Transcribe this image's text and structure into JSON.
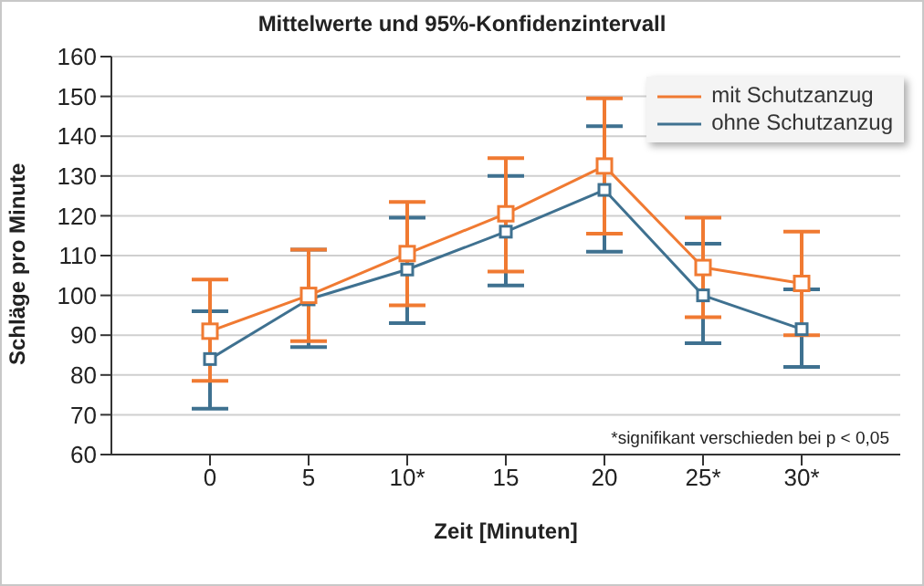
{
  "chart_data": {
    "type": "line",
    "title": "Mittelwerte und 95%-Konfidenzintervall",
    "xlabel": "Zeit [Minuten]",
    "ylabel": "Schläge pro Minute",
    "categories": [
      "0",
      "5",
      "10*",
      "15",
      "20",
      "25*",
      "30*"
    ],
    "series": [
      {
        "name": "mit Schutzanzug",
        "color": "#f07a32",
        "values": [
          91,
          100,
          110.5,
          120.5,
          132.5,
          107,
          103
        ],
        "errors": [
          [
            78.5,
            104
          ],
          [
            88.5,
            111.5
          ],
          [
            97.5,
            123.5
          ],
          [
            106,
            134.5
          ],
          [
            115.5,
            149.5
          ],
          [
            94.5,
            119.5
          ],
          [
            90,
            116
          ]
        ]
      },
      {
        "name": "ohne Schutzanzug",
        "color": "#3f7190",
        "values": [
          84,
          99,
          106.5,
          116,
          126.5,
          100,
          91.5
        ],
        "errors": [
          [
            71.5,
            96
          ],
          [
            87,
            111.5
          ],
          [
            93,
            119.5
          ],
          [
            102.5,
            130
          ],
          [
            111,
            142.5
          ],
          [
            88,
            113
          ],
          [
            82,
            101.5
          ]
        ]
      }
    ],
    "ylim": [
      60,
      160
    ],
    "yticks": [
      60,
      70,
      80,
      90,
      100,
      110,
      120,
      130,
      140,
      150,
      160
    ],
    "grid": "y",
    "legend": "top right",
    "marker": "square",
    "line_style": "solid",
    "annotations": [
      "*signifikant verschieden bei p < 0,05"
    ]
  }
}
